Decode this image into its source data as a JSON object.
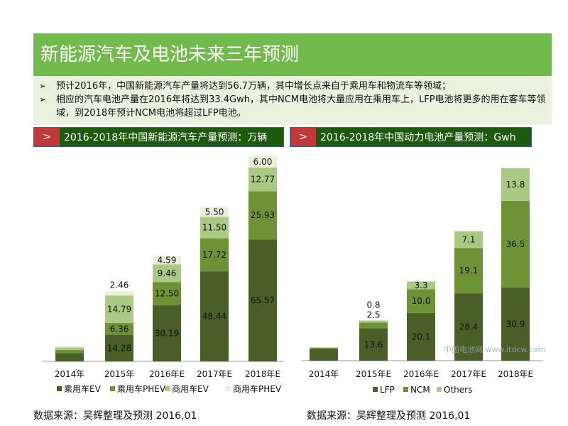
{
  "title": "新能源汽车及电池未来三年预测",
  "bullets": [
    "预计2016年，中国新能源汽车产量将达到56.7万辆，其中增长点来自于乘用车和物流车等领域；",
    "相应的汽车电池产量在2016年将达到33.4Gwh，其中NCM电池将大量应用在乘用车上，LFP电池将更多的用在客车等领域，到2018年预计NCM电池将超过LFP电池。"
  ],
  "bullet_icon": "arrow-right-icon",
  "chevron": ">",
  "watermark": {
    "name": "中国电池网",
    "url": "www.itdcw.com"
  },
  "chart_data": [
    {
      "type": "bar",
      "stacked": true,
      "title": "2016-2018年中国新能源汽车产量预测：万辆",
      "categories": [
        "2014年",
        "2015年",
        "2016年E",
        "2017年E",
        "2018年E"
      ],
      "series": [
        {
          "name": "乘用车EV",
          "color": "#4a5f27",
          "values": [
            4.5,
            14.28,
            30.19,
            48.44,
            65.57
          ],
          "labeled": [
            false,
            true,
            true,
            true,
            true
          ]
        },
        {
          "name": "乘用车PHEV",
          "color": "#6e9337",
          "values": [
            1.7,
            6.36,
            12.5,
            17.72,
            25.93
          ],
          "labeled": [
            false,
            true,
            true,
            true,
            true
          ]
        },
        {
          "name": "商用车EV",
          "color": "#a9c985",
          "values": [
            1.3,
            14.79,
            9.46,
            11.5,
            12.77
          ],
          "labeled": [
            false,
            true,
            true,
            true,
            true
          ]
        },
        {
          "name": "商用车PHEV",
          "color": "#ebf0dd",
          "values": [
            0.9,
            2.46,
            4.59,
            5.5,
            6.0
          ],
          "labeled": [
            false,
            true,
            true,
            true,
            true
          ]
        }
      ],
      "legend": "bottom",
      "grid": false,
      "source": "数据来源：吴辉整理及预测   2016,01"
    },
    {
      "type": "bar",
      "stacked": true,
      "title": "2016-2018年中国动力电池产量预测：Gwh",
      "categories": [
        "2014年",
        "2015年E",
        "2016年E",
        "2017年E",
        "2018年E"
      ],
      "series": [
        {
          "name": "LFP",
          "color": "#4a5f27",
          "values": [
            5.0,
            13.6,
            20.1,
            28.4,
            30.9
          ],
          "labeled": [
            false,
            true,
            true,
            true,
            true
          ]
        },
        {
          "name": "NCM",
          "color": "#6e9337",
          "values": [
            0.4,
            2.5,
            10.0,
            19.1,
            36.5
          ],
          "labeled": [
            false,
            true,
            true,
            true,
            true
          ]
        },
        {
          "name": "Others",
          "color": "#a9c985",
          "values": [
            0.2,
            0.8,
            3.3,
            7.1,
            13.8
          ],
          "labeled": [
            false,
            true,
            true,
            true,
            true
          ]
        }
      ],
      "legend": "bottom",
      "grid": false,
      "source": "数据来源：吴辉整理及预测   2016,01"
    }
  ]
}
